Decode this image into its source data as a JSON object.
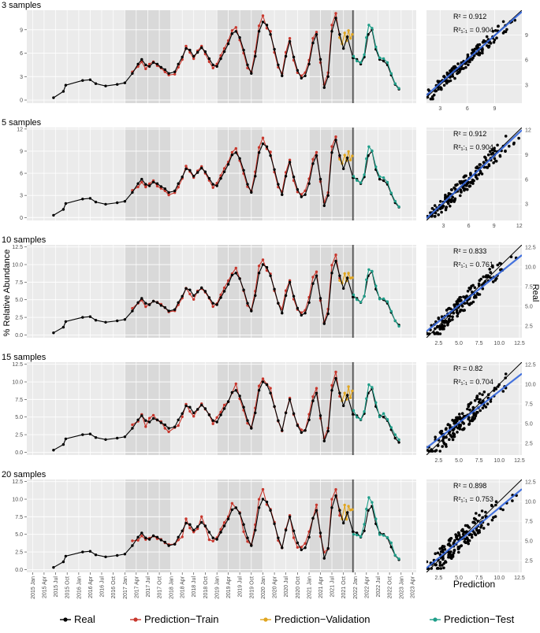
{
  "ylabel_left": "% Relative Abundance",
  "ylabel_right": "Real",
  "xlabel_right": "Prediction",
  "legend": [
    {
      "label": "Real",
      "color": "#000000"
    },
    {
      "label": "Prediction−Train",
      "color": "#c8372d"
    },
    {
      "label": "Prediction−Validation",
      "color": "#e0a520"
    },
    {
      "label": "Prediction−Test",
      "color": "#1f9e89"
    }
  ],
  "date_ticks": [
    "2015 Jan",
    "2015 Apr",
    "2015 Jul",
    "2015 Oct",
    "2016 Jan",
    "2016 Apr",
    "2016 Jul",
    "2016 Oct",
    "2017 Jan",
    "2017 Apr",
    "2017 Jul",
    "2017 Oct",
    "2018 Jan",
    "2018 Apr",
    "2018 Jul",
    "2018 Oct",
    "2019 Jan",
    "2019 Apr",
    "2019 Jul",
    "2019 Oct",
    "2020 Jan",
    "2020 Apr",
    "2020 Jul",
    "2020 Oct",
    "2021 Jan",
    "2021 Apr",
    "2021 Jul",
    "2021 Oct",
    "2022 Jan",
    "2022 Apr",
    "2022 Jul",
    "2022 Oct",
    "2023 Jan",
    "2023 Apr"
  ],
  "chart_data": [
    {
      "type": "line",
      "title": "3 samples",
      "x_range": [
        "2014-11-15",
        "2023-05-01"
      ],
      "ylim": [
        -0.4,
        11.5
      ],
      "yticks": [
        0,
        3,
        6,
        9
      ],
      "shaded_periods": [
        [
          "2017-01-01",
          "2017-12-31"
        ],
        [
          "2019-01-01",
          "2019-12-31"
        ],
        [
          "2021-01-01",
          "2021-12-31"
        ]
      ],
      "split_date": "2021-12-15",
      "series": [
        {
          "name": "Real",
          "key": "real"
        },
        {
          "name": "Prediction−Train",
          "key": "train"
        },
        {
          "name": "Prediction−Validation",
          "key": "val"
        },
        {
          "name": "Prediction−Test",
          "key": "test"
        }
      ],
      "scatter": {
        "type": "scatter",
        "annotations": [
          "R² = 0.912",
          "R²₁:₁ = 0.904"
        ],
        "xlim": [
          1.5,
          12
        ],
        "ylim": [
          0.8,
          12
        ],
        "xticks": [
          3,
          6,
          9
        ],
        "yticks": [
          3,
          6,
          9
        ]
      }
    },
    {
      "type": "line",
      "title": "5 samples",
      "x_range": [
        "2014-11-15",
        "2023-05-01"
      ],
      "ylim": [
        -0.4,
        12.2
      ],
      "yticks": [
        0,
        3,
        6,
        9,
        12
      ],
      "shaded_periods": [
        [
          "2017-01-01",
          "2017-12-31"
        ],
        [
          "2019-01-01",
          "2019-12-31"
        ],
        [
          "2021-01-01",
          "2021-12-31"
        ]
      ],
      "split_date": "2021-12-15",
      "series": [
        {
          "name": "Real",
          "key": "real"
        },
        {
          "name": "Prediction−Train",
          "key": "train"
        },
        {
          "name": "Prediction−Validation",
          "key": "val"
        },
        {
          "name": "Prediction−Test",
          "key": "test"
        }
      ],
      "scatter": {
        "type": "scatter",
        "annotations": [
          "R² = 0.912",
          "R²₁:₁ = 0.904"
        ],
        "xlim": [
          1,
          12.3
        ],
        "ylim": [
          1,
          12.3
        ],
        "xticks": [
          3,
          6,
          9,
          12
        ],
        "yticks": [
          3,
          6,
          9,
          12
        ]
      }
    },
    {
      "type": "line",
      "title": "10 samples",
      "x_range": [
        "2014-11-15",
        "2023-05-01"
      ],
      "ylim": [
        -0.4,
        12.8
      ],
      "yticks": [
        0,
        2.5,
        5,
        7.5,
        10,
        12.5
      ],
      "shaded_periods": [
        [
          "2017-01-01",
          "2017-12-31"
        ],
        [
          "2019-01-01",
          "2019-12-31"
        ],
        [
          "2021-01-01",
          "2021-12-31"
        ]
      ],
      "split_date": "2021-12-15",
      "series": [
        {
          "name": "Real",
          "key": "real"
        },
        {
          "name": "Prediction−Train",
          "key": "train"
        },
        {
          "name": "Prediction−Validation",
          "key": "val"
        },
        {
          "name": "Prediction−Test",
          "key": "test"
        }
      ],
      "scatter": {
        "type": "scatter",
        "annotations": [
          "R² = 0.833",
          "R²₁:₁ = 0.761"
        ],
        "xlim": [
          1,
          12.8
        ],
        "ylim": [
          1,
          12.8
        ],
        "xticks": [
          2.5,
          5,
          7.5,
          10,
          12.5
        ],
        "yticks": [
          2.5,
          5,
          7.5,
          10,
          12.5
        ]
      }
    },
    {
      "type": "line",
      "title": "15 samples",
      "x_range": [
        "2014-11-15",
        "2023-05-01"
      ],
      "ylim": [
        -0.4,
        12.8
      ],
      "yticks": [
        0,
        2.5,
        5,
        7.5,
        10,
        12.5
      ],
      "shaded_periods": [
        [
          "2017-01-01",
          "2017-12-31"
        ],
        [
          "2019-01-01",
          "2019-12-31"
        ],
        [
          "2021-01-01",
          "2021-12-31"
        ]
      ],
      "split_date": "2021-12-15",
      "series": [
        {
          "name": "Real",
          "key": "real"
        },
        {
          "name": "Prediction−Train",
          "key": "train"
        },
        {
          "name": "Prediction−Validation",
          "key": "val"
        },
        {
          "name": "Prediction−Test",
          "key": "test"
        }
      ],
      "scatter": {
        "type": "scatter",
        "annotations": [
          "R² = 0.82",
          "R²₁:₁ = 0.704"
        ],
        "xlim": [
          1,
          12.8
        ],
        "ylim": [
          1,
          12.8
        ],
        "xticks": [
          2.5,
          5,
          7.5,
          10,
          12.5
        ],
        "yticks": [
          2.5,
          5,
          7.5,
          10,
          12.5
        ]
      }
    },
    {
      "type": "line",
      "title": "20 samples",
      "x_range": [
        "2014-11-15",
        "2023-05-01"
      ],
      "ylim": [
        -0.4,
        12.8
      ],
      "yticks": [
        0,
        2.5,
        5,
        7.5,
        10,
        12.5
      ],
      "shaded_periods": [
        [
          "2017-01-01",
          "2017-12-31"
        ],
        [
          "2019-01-01",
          "2019-12-31"
        ],
        [
          "2021-01-01",
          "2021-12-31"
        ]
      ],
      "split_date": "2021-12-15",
      "series": [
        {
          "name": "Real",
          "key": "real"
        },
        {
          "name": "Prediction−Train",
          "key": "train"
        },
        {
          "name": "Prediction−Validation",
          "key": "val"
        },
        {
          "name": "Prediction−Test",
          "key": "test"
        }
      ],
      "scatter": {
        "type": "scatter",
        "annotations": [
          "R² = 0.898",
          "R²₁:₁ = 0.753"
        ],
        "xlim": [
          1,
          12.8
        ],
        "ylim": [
          1,
          12.8
        ],
        "xticks": [
          2.5,
          5,
          7.5,
          10,
          12.5
        ],
        "yticks": [
          2.5,
          5,
          7.5,
          10,
          12.5
        ]
      }
    }
  ],
  "real_series": [
    [
      "2015-06-15",
      0.3
    ],
    [
      "2015-09-01",
      1.1
    ],
    [
      "2015-09-20",
      1.9
    ],
    [
      "2016-02-01",
      2.5
    ],
    [
      "2016-04-01",
      2.6
    ],
    [
      "2016-05-15",
      2.1
    ],
    [
      "2016-08-01",
      1.8
    ],
    [
      "2016-11-01",
      2.0
    ],
    [
      "2017-01-01",
      2.2
    ],
    [
      "2017-03-01",
      3.4
    ],
    [
      "2017-04-15",
      4.6
    ],
    [
      "2017-05-15",
      5.2
    ],
    [
      "2017-06-15",
      4.5
    ],
    [
      "2017-07-15",
      4.3
    ],
    [
      "2017-08-15",
      4.8
    ],
    [
      "2017-09-15",
      4.6
    ],
    [
      "2017-10-15",
      4.2
    ],
    [
      "2017-11-15",
      3.9
    ],
    [
      "2017-12-15",
      3.4
    ],
    [
      "2018-02-01",
      3.6
    ],
    [
      "2018-03-01",
      4.6
    ],
    [
      "2018-04-01",
      5.5
    ],
    [
      "2018-05-01",
      6.6
    ],
    [
      "2018-06-01",
      6.4
    ],
    [
      "2018-07-01",
      5.6
    ],
    [
      "2018-08-01",
      6.1
    ],
    [
      "2018-09-01",
      6.7
    ],
    [
      "2018-10-01",
      6.2
    ],
    [
      "2018-11-01",
      5.3
    ],
    [
      "2018-12-01",
      4.5
    ],
    [
      "2019-01-01",
      4.3
    ],
    [
      "2019-02-01",
      5.3
    ],
    [
      "2019-03-01",
      6.2
    ],
    [
      "2019-04-01",
      7.2
    ],
    [
      "2019-05-01",
      8.5
    ],
    [
      "2019-06-01",
      8.8
    ],
    [
      "2019-07-01",
      8.0
    ],
    [
      "2019-08-01",
      6.4
    ],
    [
      "2019-09-01",
      4.5
    ],
    [
      "2019-10-01",
      3.4
    ],
    [
      "2019-11-01",
      5.6
    ],
    [
      "2019-12-01",
      8.8
    ],
    [
      "2020-01-01",
      10.0
    ],
    [
      "2020-02-01",
      9.6
    ],
    [
      "2020-03-01",
      8.4
    ],
    [
      "2020-04-01",
      6.5
    ],
    [
      "2020-05-01",
      4.5
    ],
    [
      "2020-06-01",
      3.1
    ],
    [
      "2020-07-01",
      5.6
    ],
    [
      "2020-08-01",
      7.5
    ],
    [
      "2020-09-01",
      5.5
    ],
    [
      "2020-10-01",
      3.8
    ],
    [
      "2020-11-01",
      2.8
    ],
    [
      "2020-12-01",
      3.1
    ],
    [
      "2021-01-01",
      4.6
    ],
    [
      "2021-02-01",
      7.3
    ],
    [
      "2021-03-01",
      8.4
    ],
    [
      "2021-04-01",
      5.2
    ],
    [
      "2021-05-01",
      1.6
    ],
    [
      "2021-06-01",
      3.0
    ],
    [
      "2021-07-01",
      8.8
    ],
    [
      "2021-08-01",
      10.5
    ],
    [
      "2021-09-01",
      8.4
    ],
    [
      "2021-10-01",
      6.6
    ],
    [
      "2021-11-01",
      8.1
    ],
    [
      "2021-12-15",
      5.4
    ],
    [
      "2022-01-15",
      5.2
    ],
    [
      "2022-02-15",
      4.6
    ],
    [
      "2022-03-15",
      5.5
    ],
    [
      "2022-04-15",
      8.4
    ],
    [
      "2022-05-15",
      9.0
    ],
    [
      "2022-06-15",
      6.5
    ],
    [
      "2022-07-15",
      5.2
    ],
    [
      "2022-08-15",
      5.0
    ],
    [
      "2022-09-15",
      4.5
    ],
    [
      "2022-10-15",
      3.2
    ],
    [
      "2022-11-15",
      2.0
    ],
    [
      "2022-12-15",
      1.4
    ]
  ],
  "train_series": [
    [
      "2017-03-01",
      3.6
    ],
    [
      "2017-04-15",
      4.3
    ],
    [
      "2017-05-15",
      4.9
    ],
    [
      "2017-06-15",
      4.0
    ],
    [
      "2017-07-15",
      4.6
    ],
    [
      "2017-08-15",
      4.9
    ],
    [
      "2017-09-15",
      4.4
    ],
    [
      "2017-10-15",
      4.1
    ],
    [
      "2017-11-15",
      3.6
    ],
    [
      "2017-12-15",
      3.2
    ],
    [
      "2018-02-01",
      3.3
    ],
    [
      "2018-03-01",
      4.2
    ],
    [
      "2018-04-01",
      5.2
    ],
    [
      "2018-05-01",
      6.9
    ],
    [
      "2018-06-01",
      6.1
    ],
    [
      "2018-07-01",
      5.3
    ],
    [
      "2018-08-01",
      6.3
    ],
    [
      "2018-09-01",
      6.9
    ],
    [
      "2018-10-01",
      5.9
    ],
    [
      "2018-11-01",
      4.9
    ],
    [
      "2018-12-01",
      4.1
    ],
    [
      "2019-01-01",
      4.6
    ],
    [
      "2019-02-01",
      5.7
    ],
    [
      "2019-03-01",
      6.6
    ],
    [
      "2019-04-01",
      7.6
    ],
    [
      "2019-05-01",
      8.9
    ],
    [
      "2019-06-01",
      9.3
    ],
    [
      "2019-07-01",
      7.7
    ],
    [
      "2019-08-01",
      6.0
    ],
    [
      "2019-09-01",
      4.1
    ],
    [
      "2019-10-01",
      3.6
    ],
    [
      "2019-11-01",
      6.2
    ],
    [
      "2019-12-01",
      9.5
    ],
    [
      "2020-01-01",
      10.8
    ],
    [
      "2020-02-01",
      9.2
    ],
    [
      "2020-03-01",
      8.8
    ],
    [
      "2020-04-01",
      6.1
    ],
    [
      "2020-05-01",
      4.2
    ],
    [
      "2020-06-01",
      3.4
    ],
    [
      "2020-07-01",
      6.1
    ],
    [
      "2020-08-01",
      7.9
    ],
    [
      "2020-09-01",
      5.1
    ],
    [
      "2020-10-01",
      3.5
    ],
    [
      "2020-11-01",
      3.1
    ],
    [
      "2020-12-01",
      3.5
    ],
    [
      "2021-01-01",
      5.1
    ],
    [
      "2021-02-01",
      7.9
    ],
    [
      "2021-03-01",
      8.7
    ],
    [
      "2021-04-01",
      4.8
    ],
    [
      "2021-05-01",
      2.0
    ],
    [
      "2021-06-01",
      3.5
    ],
    [
      "2021-07-01",
      9.6
    ],
    [
      "2021-08-01",
      11.1
    ],
    [
      "2021-09-01",
      8.0
    ]
  ],
  "val_series": [
    [
      "2021-09-01",
      8.0
    ],
    [
      "2021-09-20",
      7.2
    ],
    [
      "2021-10-10",
      8.6
    ],
    [
      "2021-10-25",
      7.6
    ],
    [
      "2021-11-10",
      8.9
    ],
    [
      "2021-11-25",
      7.9
    ],
    [
      "2021-12-10",
      8.4
    ]
  ],
  "test_series": [
    [
      "2021-12-20",
      5.6
    ],
    [
      "2022-01-15",
      5.0
    ],
    [
      "2022-02-15",
      4.8
    ],
    [
      "2022-03-15",
      5.8
    ],
    [
      "2022-04-01",
      8.0
    ],
    [
      "2022-04-20",
      9.6
    ],
    [
      "2022-05-15",
      9.2
    ],
    [
      "2022-06-15",
      6.8
    ],
    [
      "2022-07-15",
      5.4
    ],
    [
      "2022-08-15",
      5.3
    ],
    [
      "2022-09-15",
      4.8
    ],
    [
      "2022-10-15",
      3.4
    ],
    [
      "2022-11-15",
      2.1
    ],
    [
      "2022-12-15",
      1.5
    ]
  ]
}
